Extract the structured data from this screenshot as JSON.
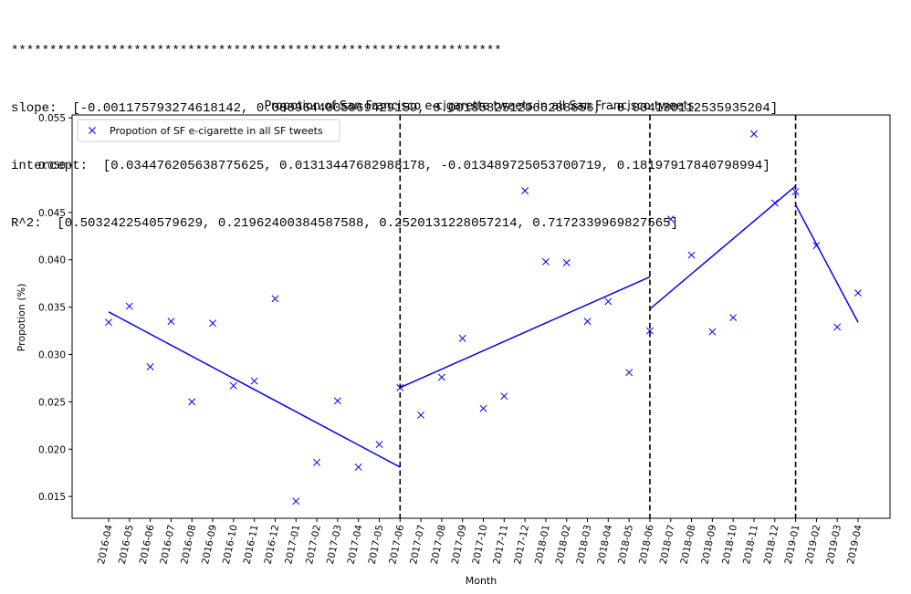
{
  "console": {
    "lines": [
      "****************************************************************",
      "slope:  [-0.001175793274618142, 0.0009644005969429159, 0.0018582512966288656, -0.004130112535935204]",
      "intercept:  [0.034476205638775625, 0.01313447682988178, -0.013489725053700719, 0.18197917840798994]",
      "R^2:  [0.5032422540579629, 0.21962400384587588, 0.2520131228057214, 0.7172339969827565]"
    ]
  },
  "chart_data": {
    "type": "scatter",
    "title": "Propotion of San Francisco e-cigarette tweets in all San Francisco tweets.",
    "xlabel": "Month",
    "ylabel": "Propotion (%)",
    "ylim": [
      0.0127,
      0.0553
    ],
    "yticks": [
      "0.015",
      "0.020",
      "0.025",
      "0.030",
      "0.035",
      "0.040",
      "0.045",
      "0.050",
      "0.055"
    ],
    "ytick_values": [
      0.015,
      0.02,
      0.025,
      0.03,
      0.035,
      0.04,
      0.045,
      0.05,
      0.055
    ],
    "categories": [
      "2016-04",
      "2016-05",
      "2016-06",
      "2016-07",
      "2016-08",
      "2016-09",
      "2016-10",
      "2016-11",
      "2016-12",
      "2017-01",
      "2017-02",
      "2017-03",
      "2017-04",
      "2017-05",
      "2017-06",
      "2017-07",
      "2017-08",
      "2017-09",
      "2017-10",
      "2017-11",
      "2017-12",
      "2018-01",
      "2018-02",
      "2018-03",
      "2018-04",
      "2018-05",
      "2018-06",
      "2018-07",
      "2018-08",
      "2018-09",
      "2018-10",
      "2018-11",
      "2018-12",
      "2019-01",
      "2019-02",
      "2019-03",
      "2019-04"
    ],
    "series": [
      {
        "name": "Propotion of SF e-cigarette in all SF tweets",
        "marker": "x",
        "color": "#0000ff",
        "values": [
          0.0334,
          0.0351,
          0.0287,
          0.0335,
          0.025,
          0.0333,
          0.0267,
          0.0272,
          0.0359,
          0.0145,
          0.0186,
          0.0251,
          0.0181,
          0.0205,
          0.0265,
          0.0236,
          0.0276,
          0.0317,
          0.0243,
          0.0256,
          0.0473,
          0.0398,
          0.0397,
          0.0335,
          0.0356,
          0.0281,
          0.0325,
          0.0443,
          0.0405,
          0.0324,
          0.0339,
          0.0533,
          0.046,
          0.0472,
          0.0415,
          0.0329,
          0.0365
        ]
      }
    ],
    "fit_lines": [
      {
        "x": [
          "2016-04",
          "2017-06"
        ],
        "y": [
          0.0345,
          0.0181
        ]
      },
      {
        "x": [
          "2017-06",
          "2018-06"
        ],
        "y": [
          0.0265,
          0.0382
        ]
      },
      {
        "x": [
          "2018-06",
          "2019-01"
        ],
        "y": [
          0.0348,
          0.0478
        ]
      },
      {
        "x": [
          "2019-01",
          "2019-04"
        ],
        "y": [
          0.0458,
          0.0334
        ]
      }
    ],
    "vlines": [
      "2017-06",
      "2018-06",
      "2019-01"
    ],
    "legend": "top-left",
    "grid": false,
    "line_color": "#0000ff",
    "vline_color": "#000000"
  }
}
